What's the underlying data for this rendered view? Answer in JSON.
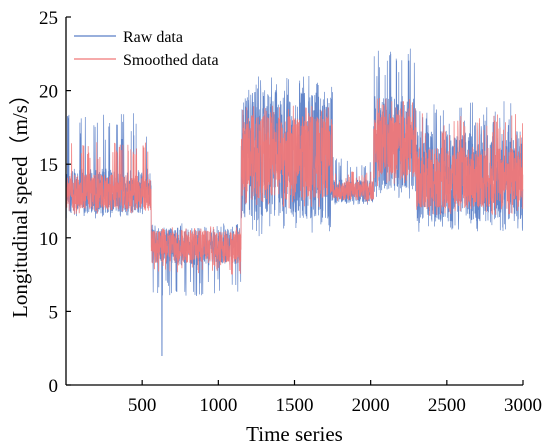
{
  "chart_data": {
    "type": "line",
    "title": "",
    "xlabel": "Time series",
    "ylabel": "Longitudinal speed（m/s）",
    "xlim": [
      0,
      3000
    ],
    "ylim": [
      0,
      25
    ],
    "x_ticks": [
      500,
      1000,
      1500,
      2000,
      2500,
      3000
    ],
    "x_tick_labels": [
      "500",
      "1000",
      "1500",
      "2000",
      "2500",
      "3000"
    ],
    "y_ticks": [
      0,
      5,
      10,
      15,
      20,
      25
    ],
    "y_tick_labels": [
      "0",
      "5",
      "10",
      "15",
      "20",
      "25"
    ],
    "legend_position": "top-left",
    "grid": false,
    "series": [
      {
        "name": "Raw data",
        "color": "#5b7fc7",
        "segments": [
          {
            "x_start": 0,
            "x_end": 560,
            "mean": 13.2,
            "low": 11.3,
            "high": 18.5
          },
          {
            "x_start": 560,
            "x_end": 1150,
            "mean": 9.4,
            "low": 6.0,
            "high": 11.0,
            "min_spike": 2.0
          },
          {
            "x_start": 1150,
            "x_end": 1750,
            "mean": 15.6,
            "low": 10.0,
            "high": 21.0
          },
          {
            "x_start": 1750,
            "x_end": 2020,
            "mean": 13.2,
            "low": 12.2,
            "high": 15.5
          },
          {
            "x_start": 2020,
            "x_end": 2300,
            "mean": 16.5,
            "low": 12.5,
            "high": 23.3
          },
          {
            "x_start": 2300,
            "x_end": 3000,
            "mean": 14.2,
            "low": 10.3,
            "high": 19.3
          }
        ]
      },
      {
        "name": "Smoothed data",
        "color": "#f07878",
        "segments": [
          {
            "x_start": 0,
            "x_end": 560,
            "mean": 13.1,
            "low": 11.6,
            "high": 16.5
          },
          {
            "x_start": 560,
            "x_end": 1150,
            "mean": 9.4,
            "low": 7.5,
            "high": 10.8
          },
          {
            "x_start": 1150,
            "x_end": 1750,
            "mean": 15.5,
            "low": 12.0,
            "high": 19.0
          },
          {
            "x_start": 1750,
            "x_end": 2020,
            "mean": 13.2,
            "low": 12.4,
            "high": 14.5
          },
          {
            "x_start": 2020,
            "x_end": 2300,
            "mean": 16.3,
            "low": 13.5,
            "high": 19.5
          },
          {
            "x_start": 2300,
            "x_end": 3000,
            "mean": 14.1,
            "low": 11.5,
            "high": 18.5
          }
        ]
      }
    ]
  }
}
